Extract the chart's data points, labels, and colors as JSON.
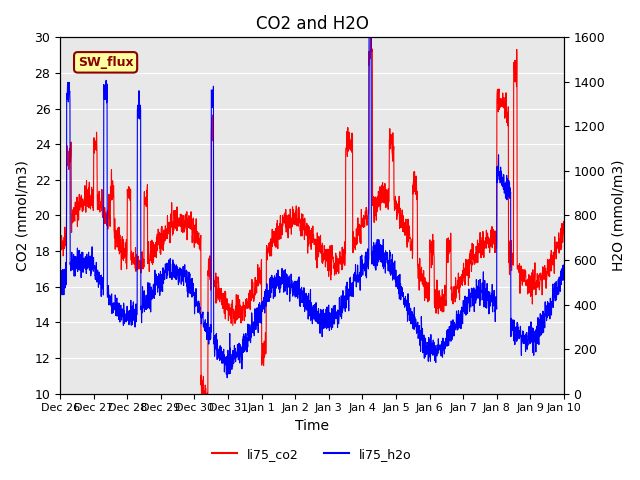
{
  "title": "CO2 and H2O",
  "xlabel": "Time",
  "ylabel_left": "CO2 (mmol/m3)",
  "ylabel_right": "H2O (mmol/m3)",
  "xlim_days": [
    0,
    15
  ],
  "ylim_co2": [
    10,
    30
  ],
  "ylim_h2o": [
    0,
    1600
  ],
  "xtick_labels": [
    "Dec 26",
    "Dec 27",
    "Dec 28",
    "Dec 29",
    "Dec 30",
    "Dec 31",
    "Jan 1",
    "Jan 2",
    "Jan 3",
    "Jan 4",
    "Jan 5",
    "Jan 6",
    "Jan 7",
    "Jan 8",
    "Jan 9",
    "Jan 10"
  ],
  "bg_color": "#e8e8e8",
  "annotation_text": "SW_flux",
  "annotation_bg": "#ffffa0",
  "annotation_border": "#8B0000",
  "legend_entries": [
    "li75_co2",
    "li75_h2o"
  ],
  "line_colors": [
    "red",
    "blue"
  ]
}
